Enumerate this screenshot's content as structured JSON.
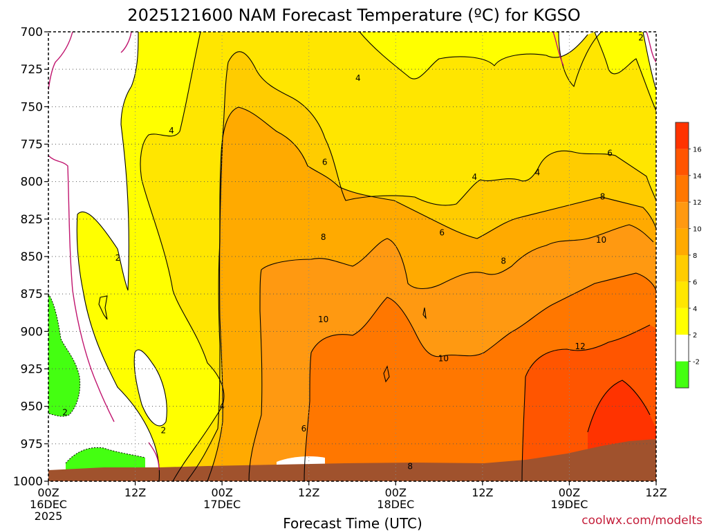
{
  "chart_data": {
    "type": "heatmap",
    "title": "2025121600 NAM Forecast Temperature (ºC) for KGSO",
    "xlabel": "Forecast Time (UTC)",
    "ylabel": "",
    "credit": "coolwx.com/modelts",
    "y_ticks": [
      700,
      725,
      750,
      775,
      800,
      825,
      850,
      875,
      900,
      925,
      950,
      975,
      1000
    ],
    "ylim": [
      700,
      1000
    ],
    "y_inverted": true,
    "x_ticks": [
      {
        "hour": 0,
        "lines": [
          "00Z",
          "16DEC",
          "2025"
        ]
      },
      {
        "hour": 12,
        "lines": [
          "12Z"
        ]
      },
      {
        "hour": 24,
        "lines": [
          "00Z",
          "17DEC"
        ]
      },
      {
        "hour": 36,
        "lines": [
          "12Z"
        ]
      },
      {
        "hour": 48,
        "lines": [
          "00Z",
          "18DEC"
        ]
      },
      {
        "hour": 60,
        "lines": [
          "12Z"
        ]
      },
      {
        "hour": 72,
        "lines": [
          "00Z",
          "19DEC"
        ]
      },
      {
        "hour": 84,
        "lines": [
          "12Z"
        ]
      }
    ],
    "xlim": [
      0,
      84
    ],
    "grid": true,
    "colorbar": {
      "labels": [
        "16",
        "14",
        "12",
        "10",
        "8",
        "6",
        "4",
        "2",
        "-2"
      ],
      "colors": [
        "#ff3300",
        "#ff5500",
        "#ff7700",
        "#ff9911",
        "#ffaa00",
        "#ffcc00",
        "#ffe600",
        "#ffff00",
        "#ffffff",
        "#44ff11"
      ]
    },
    "contour_labels": [
      {
        "text": "2",
        "hour": 81.9,
        "p": 704
      },
      {
        "text": "4",
        "hour": 42.8,
        "p": 731
      },
      {
        "text": "4",
        "hour": 17.0,
        "p": 766
      },
      {
        "text": "6",
        "hour": 38.2,
        "p": 787
      },
      {
        "text": "6",
        "hour": 77.6,
        "p": 781
      },
      {
        "text": "4",
        "hour": 67.6,
        "p": 794
      },
      {
        "text": "4",
        "hour": 58.9,
        "p": 797
      },
      {
        "text": "8",
        "hour": 76.6,
        "p": 810
      },
      {
        "text": "6",
        "hour": 54.4,
        "p": 834
      },
      {
        "text": "8",
        "hour": 38.0,
        "p": 837
      },
      {
        "text": "10",
        "hour": 76.4,
        "p": 839
      },
      {
        "text": "2",
        "hour": 9.6,
        "p": 851
      },
      {
        "text": "8",
        "hour": 62.9,
        "p": 853
      },
      {
        "text": "10",
        "hour": 38.0,
        "p": 892
      },
      {
        "text": "12",
        "hour": 73.5,
        "p": 910
      },
      {
        "text": "10",
        "hour": 54.6,
        "p": 918
      },
      {
        "text": "4",
        "hour": 24.0,
        "p": 950
      },
      {
        "text": "2",
        "hour": 2.3,
        "p": 954
      },
      {
        "text": "2",
        "hour": 15.9,
        "p": 966
      },
      {
        "text": "6",
        "hour": 35.3,
        "p": 965
      },
      {
        "text": "8",
        "hour": 50.0,
        "p": 990
      }
    ],
    "colors": {
      "terrain": "#a0522d",
      "freezing_line": "#c0146e",
      "above_16": "#ff3300",
      "14_16": "#ff5500",
      "12_14": "#ff7700",
      "10_12": "#ff9911",
      "8_10": "#ffaa00",
      "6_8": "#ffcc00",
      "4_6": "#ffe600",
      "2_4": "#ffff00",
      "neg2_2": "#ffffff",
      "below_neg2": "#44ff11"
    }
  }
}
